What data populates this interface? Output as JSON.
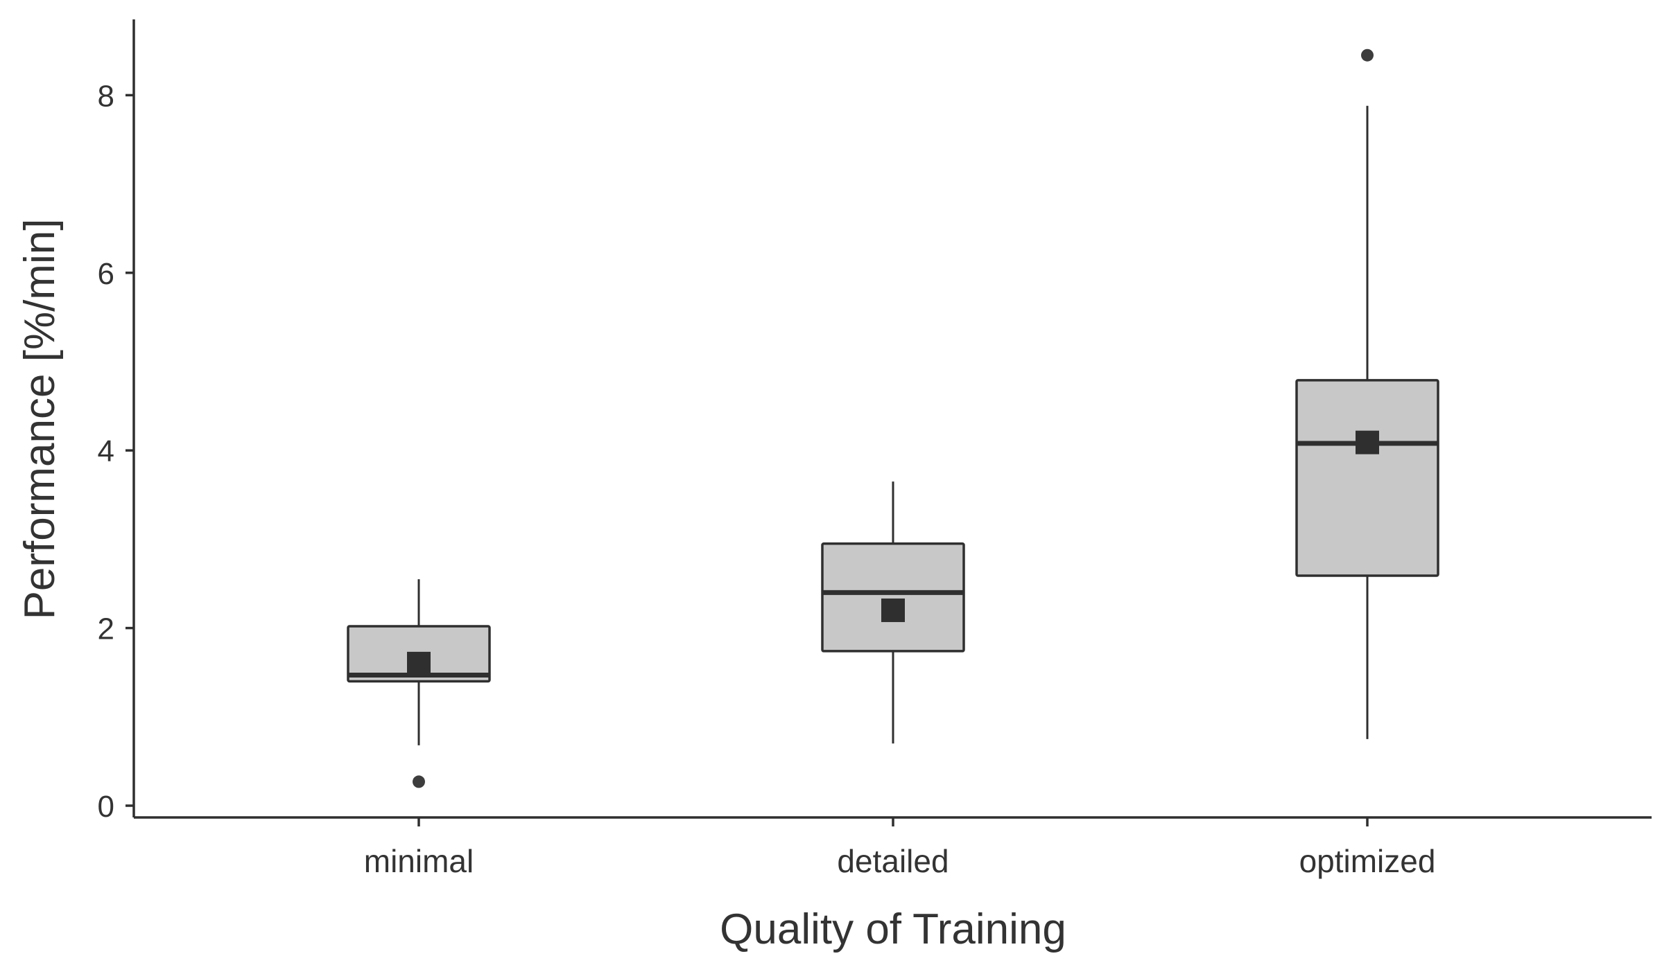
{
  "chart_data": {
    "type": "boxplot",
    "title": "",
    "xlabel": "Quality of Training",
    "ylabel": "Performance [%/min]",
    "ylim": [
      0,
      8.8
    ],
    "yticks": [
      0,
      2,
      4,
      6,
      8
    ],
    "categories": [
      "minimal",
      "detailed",
      "optimized"
    ],
    "boxes": [
      {
        "category": "minimal",
        "whisker_low": 0.68,
        "q1": 1.4,
        "median": 1.47,
        "q3": 2.02,
        "whisker_high": 2.55,
        "mean": 1.6,
        "outliers": [
          0.27
        ]
      },
      {
        "category": "detailed",
        "whisker_low": 0.7,
        "q1": 1.74,
        "median": 2.4,
        "q3": 2.95,
        "whisker_high": 3.65,
        "mean": 2.2,
        "outliers": []
      },
      {
        "category": "optimized",
        "whisker_low": 0.75,
        "q1": 2.59,
        "median": 4.08,
        "q3": 4.79,
        "whisker_high": 7.88,
        "mean": 4.09,
        "outliers": [
          8.45
        ]
      }
    ],
    "grid": false,
    "legend": "none",
    "colors": {
      "box_fill": "#c8c8c8",
      "stroke": "#2f2f2f",
      "mean_marker": "#2f2f2f",
      "outlier": "#3d3d3d"
    }
  }
}
